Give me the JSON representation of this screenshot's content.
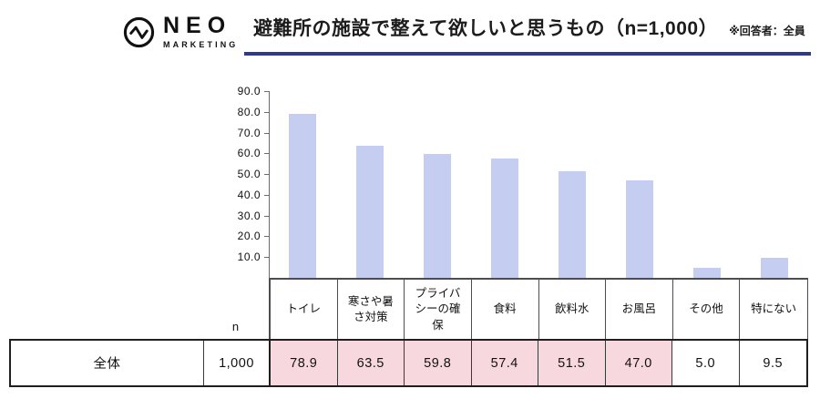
{
  "header": {
    "brand": "NEO",
    "brand_sub": "MARKETING",
    "title": "避難所の施設で整えて欲しいと思うもの（n=1,000）",
    "note": "※回答者：全員",
    "underline_color": "#2f3a8f"
  },
  "chart_data": {
    "type": "bar",
    "title": "避難所の施設で整えて欲しいと思うもの（n=1,000）",
    "note": "※回答者：全員",
    "categories": [
      "トイレ",
      "寒さや暑さ対策",
      "プライバシーの確保",
      "食料",
      "飲料水",
      "お風呂",
      "その他",
      "特にない"
    ],
    "values": [
      78.9,
      63.5,
      59.8,
      57.4,
      51.5,
      47.0,
      5.0,
      9.5
    ],
    "ylim": [
      0,
      90
    ],
    "yticks": [
      90,
      80,
      70,
      60,
      50,
      40,
      30,
      20,
      10
    ],
    "ytick_decimals": 1,
    "grid": false,
    "legend": false,
    "bar_color": "#c5cdf0",
    "xlabel": "",
    "ylabel": ""
  },
  "table": {
    "row_label": "全体",
    "n_header": "n",
    "n_value": "1,000",
    "values_display": [
      "78.9",
      "63.5",
      "59.8",
      "57.4",
      "51.5",
      "47.0",
      "5.0",
      "9.5"
    ],
    "highlighted": [
      true,
      true,
      true,
      true,
      true,
      true,
      false,
      false
    ],
    "highlight_color": "#f7d8de"
  }
}
